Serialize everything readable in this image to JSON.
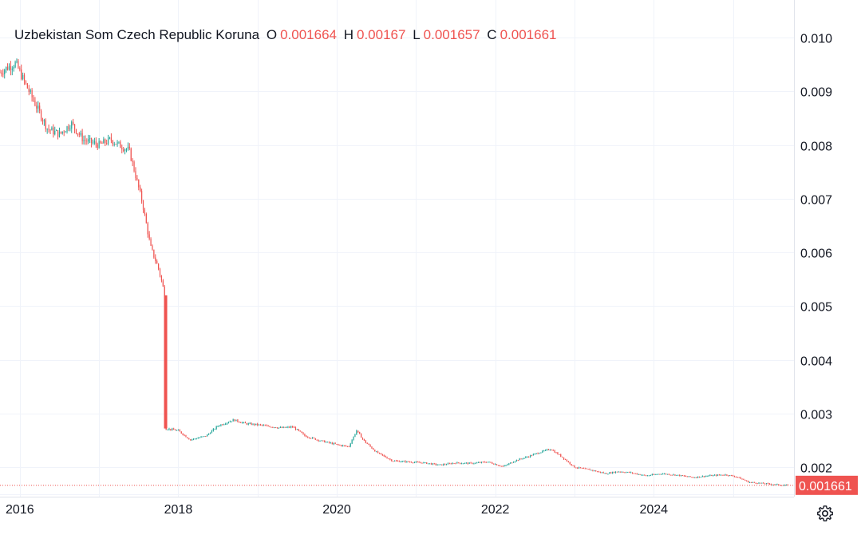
{
  "legend": {
    "symbol": "Uzbekistan Som Czech Republic Koruna",
    "o_label": "O",
    "o_value": "0.001664",
    "h_label": "H",
    "h_value": "0.00167",
    "l_label": "L",
    "l_value": "0.001657",
    "c_label": "C",
    "c_value": "0.001661"
  },
  "last_price_label": "0.001661",
  "colors": {
    "up": "#26a69a",
    "down": "#ef5350",
    "grid": "#f0f3fa",
    "axis_text": "#131722"
  },
  "settings_icon": "gear-icon",
  "chart_data": {
    "type": "candlestick",
    "title": "",
    "xlabel": "",
    "ylabel": "",
    "ylim": [
      0.00145,
      0.0107
    ],
    "xlim": [
      2015.75,
      2025.77
    ],
    "x_ticks": [
      {
        "value": 2016,
        "label": "2016"
      },
      {
        "value": 2018,
        "label": "2018"
      },
      {
        "value": 2020,
        "label": "2020"
      },
      {
        "value": 2022,
        "label": "2022"
      },
      {
        "value": 2024,
        "label": "2024"
      }
    ],
    "y_ticks": [
      {
        "value": 0.002,
        "label": "0.002"
      },
      {
        "value": 0.003,
        "label": "0.003"
      },
      {
        "value": 0.004,
        "label": "0.004"
      },
      {
        "value": 0.005,
        "label": "0.005"
      },
      {
        "value": 0.006,
        "label": "0.006"
      },
      {
        "value": 0.007,
        "label": "0.007"
      },
      {
        "value": 0.008,
        "label": "0.008"
      },
      {
        "value": 0.009,
        "label": "0.009"
      },
      {
        "value": 0.01,
        "label": "0.010"
      }
    ],
    "grid": true,
    "last_close": 0.001661,
    "close_path": [
      [
        2015.75,
        0.00935
      ],
      [
        2015.85,
        0.00945
      ],
      [
        2015.95,
        0.00952
      ],
      [
        2016.05,
        0.0092
      ],
      [
        2016.15,
        0.0089
      ],
      [
        2016.25,
        0.0086
      ],
      [
        2016.35,
        0.0083
      ],
      [
        2016.5,
        0.0082
      ],
      [
        2016.65,
        0.0084
      ],
      [
        2016.8,
        0.0081
      ],
      [
        2017.0,
        0.008
      ],
      [
        2017.15,
        0.0081
      ],
      [
        2017.25,
        0.008
      ],
      [
        2017.38,
        0.0079
      ],
      [
        2017.45,
        0.0075
      ],
      [
        2017.55,
        0.0069
      ],
      [
        2017.65,
        0.0061
      ],
      [
        2017.75,
        0.0057
      ],
      [
        2017.8,
        0.0054
      ],
      [
        2017.83,
        0.0052
      ],
      [
        2017.84,
        0.00272
      ],
      [
        2018.0,
        0.00268
      ],
      [
        2018.15,
        0.00251
      ],
      [
        2018.35,
        0.00258
      ],
      [
        2018.5,
        0.00277
      ],
      [
        2018.7,
        0.00288
      ],
      [
        2018.85,
        0.00281
      ],
      [
        2019.0,
        0.00279
      ],
      [
        2019.3,
        0.00273
      ],
      [
        2019.45,
        0.00275
      ],
      [
        2019.6,
        0.00258
      ],
      [
        2019.8,
        0.00249
      ],
      [
        2020.0,
        0.00242
      ],
      [
        2020.15,
        0.00238
      ],
      [
        2020.25,
        0.00268
      ],
      [
        2020.35,
        0.00248
      ],
      [
        2020.5,
        0.00228
      ],
      [
        2020.7,
        0.00212
      ],
      [
        2020.9,
        0.0021
      ],
      [
        2021.1,
        0.00208
      ],
      [
        2021.3,
        0.00204
      ],
      [
        2021.5,
        0.00208
      ],
      [
        2021.7,
        0.00207
      ],
      [
        2021.9,
        0.0021
      ],
      [
        2022.1,
        0.00201
      ],
      [
        2022.25,
        0.00212
      ],
      [
        2022.4,
        0.00219
      ],
      [
        2022.55,
        0.00227
      ],
      [
        2022.7,
        0.00234
      ],
      [
        2022.85,
        0.00218
      ],
      [
        2023.0,
        0.002
      ],
      [
        2023.2,
        0.00195
      ],
      [
        2023.4,
        0.00188
      ],
      [
        2023.55,
        0.00192
      ],
      [
        2023.7,
        0.0019
      ],
      [
        2023.9,
        0.00184
      ],
      [
        2024.1,
        0.00188
      ],
      [
        2024.3,
        0.00185
      ],
      [
        2024.5,
        0.00181
      ],
      [
        2024.7,
        0.00184
      ],
      [
        2024.9,
        0.00186
      ],
      [
        2025.05,
        0.00182
      ],
      [
        2025.2,
        0.00172
      ],
      [
        2025.35,
        0.0017
      ],
      [
        2025.5,
        0.00168
      ],
      [
        2025.6,
        0.00167
      ],
      [
        2025.7,
        0.001661
      ]
    ]
  }
}
